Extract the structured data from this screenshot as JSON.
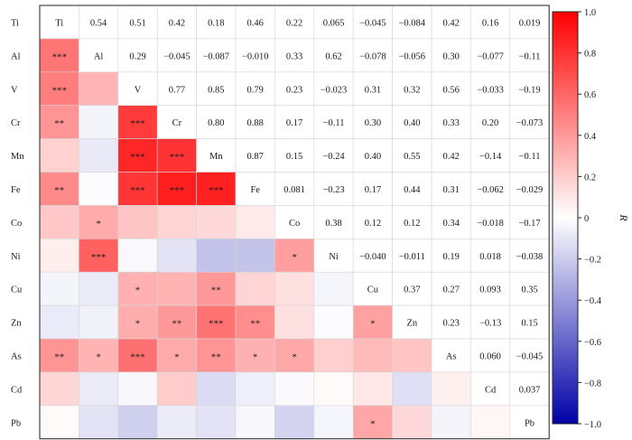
{
  "chart_data": {
    "type": "heatmap",
    "variables": [
      "Ti",
      "Al",
      "V",
      "Cr",
      "Mn",
      "Fe",
      "Co",
      "Ni",
      "Cu",
      "Zn",
      "As",
      "Cd",
      "Pb"
    ],
    "upper_r_labels": [
      [
        "",
        "0.54",
        "0.51",
        "0.42",
        "0.18",
        "0.46",
        "0.22",
        "0.065",
        "−0.045",
        "−0.084",
        "0.42",
        "0.16",
        "0.019"
      ],
      [
        "",
        "",
        "0.29",
        "−0.045",
        "−0.087",
        "−0.010",
        "0.33",
        "0.62",
        "−0.078",
        "−0.056",
        "0.30",
        "−0.077",
        "−0.11"
      ],
      [
        "",
        "",
        "",
        "0.77",
        "0.85",
        "0.79",
        "0.23",
        "−0.023",
        "0.31",
        "0.32",
        "0.56",
        "−0.033",
        "−0.19"
      ],
      [
        "",
        "",
        "",
        "",
        "0.80",
        "0.88",
        "0.17",
        "−0.11",
        "0.30",
        "0.40",
        "0.33",
        "0.20",
        "−0.073"
      ],
      [
        "",
        "",
        "",
        "",
        "",
        "0.87",
        "0.15",
        "−0.24",
        "0.40",
        "0.55",
        "0.42",
        "−0.14",
        "−0.11"
      ],
      [
        "",
        "",
        "",
        "",
        "",
        "",
        "0.081",
        "−0.23",
        "0.17",
        "0.44",
        "0.31",
        "−0.062",
        "−0.029"
      ],
      [
        "",
        "",
        "",
        "",
        "",
        "",
        "",
        "0.38",
        "0.12",
        "0.12",
        "0.34",
        "−0.018",
        "−0.17"
      ],
      [
        "",
        "",
        "",
        "",
        "",
        "",
        "",
        "",
        "−0.040",
        "−0.011",
        "0.19",
        "0.018",
        "−0.038"
      ],
      [
        "",
        "",
        "",
        "",
        "",
        "",
        "",
        "",
        "",
        "0.37",
        "0.27",
        "0.093",
        "0.35"
      ],
      [
        "",
        "",
        "",
        "",
        "",
        "",
        "",
        "",
        "",
        "",
        "0.23",
        "−0.13",
        "0.15"
      ],
      [
        "",
        "",
        "",
        "",
        "",
        "",
        "",
        "",
        "",
        "",
        "",
        "0.060",
        "−0.045"
      ],
      [
        "",
        "",
        "",
        "",
        "",
        "",
        "",
        "",
        "",
        "",
        "",
        "",
        "0.037"
      ],
      [
        "",
        "",
        "",
        "",
        "",
        "",
        "",
        "",
        "",
        "",
        "",
        "",
        ""
      ]
    ],
    "upper_r": [
      [
        null,
        0.54,
        0.51,
        0.42,
        0.18,
        0.46,
        0.22,
        0.065,
        -0.045,
        -0.084,
        0.42,
        0.16,
        0.019
      ],
      [
        null,
        null,
        0.29,
        -0.045,
        -0.087,
        -0.01,
        0.33,
        0.62,
        -0.078,
        -0.056,
        0.3,
        -0.077,
        -0.11
      ],
      [
        null,
        null,
        null,
        0.77,
        0.85,
        0.79,
        0.23,
        -0.023,
        0.31,
        0.32,
        0.56,
        -0.033,
        -0.19
      ],
      [
        null,
        null,
        null,
        null,
        0.8,
        0.88,
        0.17,
        -0.11,
        0.3,
        0.4,
        0.33,
        0.2,
        -0.073
      ],
      [
        null,
        null,
        null,
        null,
        null,
        0.87,
        0.15,
        -0.24,
        0.4,
        0.55,
        0.42,
        -0.14,
        -0.11
      ],
      [
        null,
        null,
        null,
        null,
        null,
        null,
        0.081,
        -0.23,
        0.17,
        0.44,
        0.31,
        -0.062,
        -0.029
      ],
      [
        null,
        null,
        null,
        null,
        null,
        null,
        null,
        0.38,
        0.12,
        0.12,
        0.34,
        -0.018,
        -0.17
      ],
      [
        null,
        null,
        null,
        null,
        null,
        null,
        null,
        null,
        -0.04,
        -0.011,
        0.19,
        0.018,
        -0.038
      ],
      [
        null,
        null,
        null,
        null,
        null,
        null,
        null,
        null,
        null,
        0.37,
        0.27,
        0.093,
        0.35
      ],
      [
        null,
        null,
        null,
        null,
        null,
        null,
        null,
        null,
        null,
        null,
        0.23,
        -0.13,
        0.15
      ],
      [
        null,
        null,
        null,
        null,
        null,
        null,
        null,
        null,
        null,
        null,
        null,
        0.06,
        -0.045
      ],
      [
        null,
        null,
        null,
        null,
        null,
        null,
        null,
        null,
        null,
        null,
        null,
        null,
        0.037
      ],
      [
        null,
        null,
        null,
        null,
        null,
        null,
        null,
        null,
        null,
        null,
        null,
        null,
        null
      ]
    ],
    "lower_significance": [
      [
        "",
        "",
        "",
        "",
        "",
        "",
        "",
        "",
        "",
        "",
        "",
        "",
        ""
      ],
      [
        "***",
        "",
        "",
        "",
        "",
        "",
        "",
        "",
        "",
        "",
        "",
        "",
        ""
      ],
      [
        "***",
        "",
        "",
        "",
        "",
        "",
        "",
        "",
        "",
        "",
        "",
        "",
        ""
      ],
      [
        "**",
        "",
        "***",
        "",
        "",
        "",
        "",
        "",
        "",
        "",
        "",
        "",
        ""
      ],
      [
        "",
        "",
        "***",
        "***",
        "",
        "",
        "",
        "",
        "",
        "",
        "",
        "",
        ""
      ],
      [
        "**",
        "",
        "***",
        "***",
        "***",
        "",
        "",
        "",
        "",
        "",
        "",
        "",
        ""
      ],
      [
        "",
        "*",
        "",
        "",
        "",
        "",
        "",
        "",
        "",
        "",
        "",
        "",
        ""
      ],
      [
        "",
        "***",
        "",
        "",
        "",
        "",
        "*",
        "",
        "",
        "",
        "",
        "",
        ""
      ],
      [
        "",
        "",
        "*",
        "",
        "**",
        "",
        "",
        "",
        "",
        "",
        "",
        "",
        ""
      ],
      [
        "",
        "",
        "*",
        "**",
        "***",
        "**",
        "",
        "",
        "*",
        "",
        "",
        "",
        ""
      ],
      [
        "**",
        "*",
        "***",
        "*",
        "**",
        "*",
        "*",
        "",
        "",
        "",
        "",
        "",
        ""
      ],
      [
        "",
        "",
        "",
        "",
        "",
        "",
        "",
        "",
        "",
        "",
        "",
        "",
        ""
      ],
      [
        "",
        "",
        "",
        "",
        "",
        "",
        "",
        "",
        "*",
        "",
        "",
        "",
        ""
      ]
    ],
    "colorbar": {
      "label": "R",
      "range": [
        -1.0,
        1.0
      ],
      "ticks": [
        1.0,
        0.8,
        0.6,
        0.4,
        0.2,
        0,
        -0.2,
        -0.4,
        -0.6,
        -0.8,
        -1.0
      ],
      "tick_labels": [
        "1.0",
        "0.8",
        "0.6",
        "0.4",
        "0.2",
        "0",
        "−0.2",
        "−0.4",
        "−0.6",
        "−0.8",
        "−1.0"
      ],
      "colormap": [
        "#0000a8",
        "#ffffff",
        "#ff0000"
      ]
    },
    "row_labels_side": "left",
    "diagonal_shows_variable_name": true,
    "grid": true
  }
}
